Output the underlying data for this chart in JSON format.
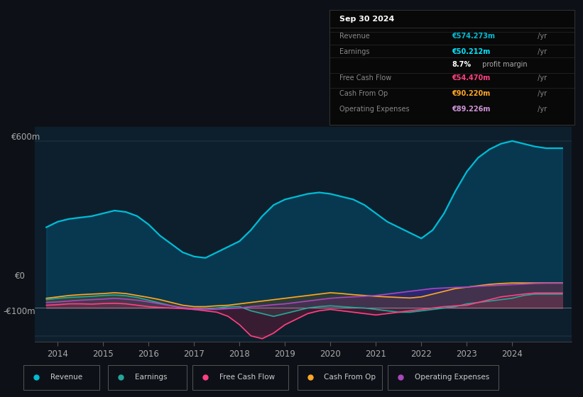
{
  "bg_color": "#0d1117",
  "plot_bg_color": "#0d1f2d",
  "title_box_date": "Sep 30 2024",
  "ylim": [
    -120,
    650
  ],
  "yticks": [
    -100,
    0,
    600
  ],
  "ytick_labels": [
    "-€100m",
    "€0",
    "€600m"
  ],
  "xlim": [
    2013.5,
    2025.3
  ],
  "xticks": [
    2014,
    2015,
    2016,
    2017,
    2018,
    2019,
    2020,
    2021,
    2022,
    2023,
    2024
  ],
  "legend": [
    {
      "label": "Revenue",
      "color": "#00bcd4"
    },
    {
      "label": "Earnings",
      "color": "#26a69a"
    },
    {
      "label": "Free Cash Flow",
      "color": "#ff4081"
    },
    {
      "label": "Cash From Op",
      "color": "#ffa726"
    },
    {
      "label": "Operating Expenses",
      "color": "#ab47bc"
    }
  ],
  "series": {
    "years": [
      2013.75,
      2014.0,
      2014.25,
      2014.5,
      2014.75,
      2015.0,
      2015.25,
      2015.5,
      2015.75,
      2016.0,
      2016.25,
      2016.5,
      2016.75,
      2017.0,
      2017.25,
      2017.5,
      2017.75,
      2018.0,
      2018.25,
      2018.5,
      2018.75,
      2019.0,
      2019.25,
      2019.5,
      2019.75,
      2020.0,
      2020.25,
      2020.5,
      2020.75,
      2021.0,
      2021.25,
      2021.5,
      2021.75,
      2022.0,
      2022.25,
      2022.5,
      2022.75,
      2023.0,
      2023.25,
      2023.5,
      2023.75,
      2024.0,
      2024.25,
      2024.5,
      2024.75,
      2025.1
    ],
    "revenue": [
      290,
      310,
      320,
      325,
      330,
      340,
      350,
      345,
      330,
      300,
      260,
      230,
      200,
      185,
      180,
      200,
      220,
      240,
      280,
      330,
      370,
      390,
      400,
      410,
      415,
      410,
      400,
      390,
      370,
      340,
      310,
      290,
      270,
      250,
      280,
      340,
      420,
      490,
      540,
      570,
      590,
      600,
      590,
      580,
      574,
      574
    ],
    "earnings": [
      30,
      35,
      38,
      40,
      42,
      45,
      47,
      44,
      38,
      28,
      18,
      8,
      0,
      -5,
      -5,
      0,
      5,
      5,
      -10,
      -20,
      -30,
      -20,
      -10,
      0,
      5,
      8,
      5,
      2,
      0,
      -5,
      -10,
      -15,
      -15,
      -10,
      -5,
      0,
      5,
      15,
      20,
      25,
      30,
      35,
      45,
      50,
      50,
      50
    ],
    "free_cash_flow": [
      10,
      12,
      15,
      15,
      14,
      16,
      17,
      15,
      10,
      5,
      2,
      0,
      -2,
      -5,
      -10,
      -15,
      -30,
      -60,
      -100,
      -110,
      -90,
      -60,
      -40,
      -20,
      -10,
      -5,
      -10,
      -15,
      -20,
      -25,
      -20,
      -15,
      -10,
      -5,
      0,
      5,
      8,
      10,
      20,
      30,
      40,
      45,
      50,
      54,
      54,
      54
    ],
    "cash_from_op": [
      35,
      40,
      45,
      48,
      50,
      52,
      55,
      52,
      45,
      38,
      30,
      20,
      10,
      5,
      5,
      8,
      10,
      15,
      20,
      25,
      30,
      35,
      40,
      45,
      50,
      55,
      52,
      48,
      45,
      42,
      40,
      38,
      36,
      40,
      50,
      60,
      70,
      75,
      80,
      85,
      88,
      90,
      90,
      90,
      90,
      90
    ],
    "operating_expenses": [
      20,
      22,
      25,
      28,
      30,
      32,
      35,
      32,
      28,
      22,
      15,
      8,
      2,
      -2,
      -5,
      -5,
      -2,
      0,
      5,
      8,
      12,
      15,
      20,
      25,
      30,
      35,
      38,
      40,
      42,
      45,
      50,
      55,
      60,
      65,
      70,
      72,
      74,
      75,
      78,
      80,
      82,
      84,
      86,
      88,
      89,
      89
    ]
  }
}
